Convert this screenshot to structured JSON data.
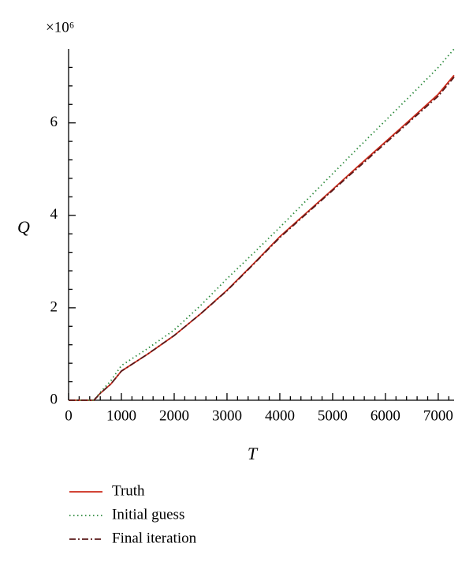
{
  "chart_data": {
    "type": "line",
    "x_label": "T",
    "y_label": "Q",
    "y_multiplier": "×10⁶",
    "x": [
      0,
      480,
      600,
      800,
      1000,
      1500,
      2000,
      2500,
      3000,
      3500,
      4000,
      4500,
      5000,
      5500,
      6000,
      6500,
      7000,
      7300
    ],
    "series": [
      {
        "name": "Truth",
        "color": "#cc2a1a",
        "dash": "solid",
        "values": [
          0,
          0,
          0.15,
          0.35,
          0.63,
          1.0,
          1.4,
          1.87,
          2.38,
          2.95,
          3.54,
          4.05,
          4.56,
          5.08,
          5.59,
          6.1,
          6.62,
          7.03
        ]
      },
      {
        "name": "Initial guess",
        "color": "#2e8b3e",
        "dash": "dotted",
        "values": [
          0,
          0,
          0.17,
          0.42,
          0.75,
          1.12,
          1.52,
          2.05,
          2.63,
          3.18,
          3.74,
          4.32,
          4.9,
          5.48,
          6.05,
          6.62,
          7.2,
          7.6
        ]
      },
      {
        "name": "Final iteration",
        "color": "#5a1a1a",
        "dash": "dashdot",
        "values": [
          0,
          0,
          0.15,
          0.35,
          0.63,
          1.0,
          1.4,
          1.87,
          2.37,
          2.94,
          3.52,
          4.03,
          4.54,
          5.05,
          5.56,
          6.07,
          6.58,
          6.99
        ]
      }
    ],
    "xlim": [
      0,
      7300
    ],
    "ylim": [
      0,
      7.6
    ],
    "xticks": [
      0,
      1000,
      2000,
      3000,
      4000,
      5000,
      6000,
      7000
    ],
    "yticks": [
      0,
      2,
      4,
      6
    ],
    "xminorticks": [
      200,
      400,
      600,
      800,
      1200,
      1400,
      1600,
      1800,
      2200,
      2400,
      2600,
      2800,
      3200,
      3400,
      3600,
      3800,
      4200,
      4400,
      4600,
      4800,
      5200,
      5400,
      5600,
      5800,
      6200,
      6400,
      6600,
      6800,
      7200
    ],
    "yminorticks": [
      0.4,
      0.8,
      1.2,
      1.6,
      2.4,
      2.8,
      3.2,
      3.6,
      4.4,
      4.8,
      5.2,
      5.6,
      6.4,
      6.8,
      7.2
    ],
    "grid": false
  }
}
